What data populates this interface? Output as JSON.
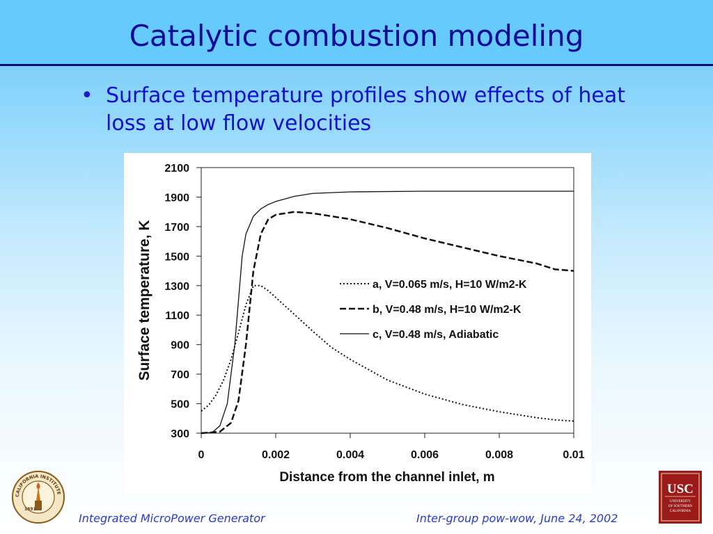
{
  "slide": {
    "title": "Catalytic combustion modeling",
    "bullet": "Surface temperature profiles show effects of heat loss at low flow velocities",
    "footer_left": "Integrated MicroPower Generator",
    "footer_right": "Inter-group pow-wow, June 24, 2002"
  },
  "logos": {
    "left_seal": "CALIFORNIA INSTITUTE OF TECHNOLOGY",
    "left_seal_year": "1891",
    "right_logo": "USC",
    "right_logo_sub": [
      "UNIVERSITY",
      "OF SOUTHERN",
      "CALIFORNIA"
    ]
  },
  "colors": {
    "title": "#0a0a99",
    "bullet": "#1010cc",
    "footer": "#2a3ad0",
    "usc_red": "#9b1a1a"
  },
  "chart_data": {
    "type": "line",
    "xlabel": "Distance from the channel inlet, m",
    "ylabel": "Surface temperature, K",
    "xlim": [
      0,
      0.01
    ],
    "ylim": [
      300,
      2100
    ],
    "xticks": [
      0,
      0.002,
      0.004,
      0.006,
      0.008,
      0.01
    ],
    "xtick_labels": [
      "0",
      "0.002",
      "0.004",
      "0.006",
      "0.008",
      "0.01"
    ],
    "yticks": [
      300,
      500,
      700,
      900,
      1100,
      1300,
      1500,
      1700,
      1900,
      2100
    ],
    "ytick_labels": [
      "300",
      "500",
      "700",
      "900",
      "1100",
      "1300",
      "1500",
      "1700",
      "1900",
      "2100"
    ],
    "legend_position": "center-right",
    "series": [
      {
        "name": "a, V=0.065 m/s, H=10 W/m2-K",
        "dash": "dotted",
        "points": [
          [
            0,
            450
          ],
          [
            0.0002,
            490
          ],
          [
            0.0004,
            560
          ],
          [
            0.0006,
            660
          ],
          [
            0.0008,
            800
          ],
          [
            0.001,
            980
          ],
          [
            0.0012,
            1170
          ],
          [
            0.0014,
            1300
          ],
          [
            0.0016,
            1300
          ],
          [
            0.0018,
            1265
          ],
          [
            0.002,
            1220
          ],
          [
            0.0025,
            1105
          ],
          [
            0.003,
            990
          ],
          [
            0.0035,
            880
          ],
          [
            0.004,
            800
          ],
          [
            0.005,
            660
          ],
          [
            0.006,
            565
          ],
          [
            0.007,
            495
          ],
          [
            0.008,
            445
          ],
          [
            0.009,
            405
          ],
          [
            0.0095,
            390
          ],
          [
            0.01,
            382
          ]
        ]
      },
      {
        "name": "b, V=0.48 m/s, H=10 W/m2-K",
        "dash": "dashed",
        "points": [
          [
            0,
            300
          ],
          [
            0.0005,
            310
          ],
          [
            0.0008,
            370
          ],
          [
            0.001,
            520
          ],
          [
            0.0012,
            900
          ],
          [
            0.0014,
            1400
          ],
          [
            0.0016,
            1650
          ],
          [
            0.0018,
            1750
          ],
          [
            0.002,
            1780
          ],
          [
            0.0025,
            1800
          ],
          [
            0.003,
            1790
          ],
          [
            0.004,
            1750
          ],
          [
            0.005,
            1690
          ],
          [
            0.006,
            1620
          ],
          [
            0.007,
            1560
          ],
          [
            0.008,
            1500
          ],
          [
            0.009,
            1450
          ],
          [
            0.0095,
            1410
          ],
          [
            0.01,
            1400
          ]
        ]
      },
      {
        "name": "c, V=0.48 m/s, Adiabatic",
        "dash": "solid",
        "points": [
          [
            0,
            300
          ],
          [
            0.0003,
            305
          ],
          [
            0.0005,
            350
          ],
          [
            0.0007,
            500
          ],
          [
            0.0009,
            900
          ],
          [
            0.001,
            1200
          ],
          [
            0.0011,
            1500
          ],
          [
            0.0012,
            1650
          ],
          [
            0.0014,
            1770
          ],
          [
            0.0016,
            1820
          ],
          [
            0.0018,
            1850
          ],
          [
            0.002,
            1870
          ],
          [
            0.0025,
            1905
          ],
          [
            0.003,
            1925
          ],
          [
            0.004,
            1935
          ],
          [
            0.006,
            1940
          ],
          [
            0.008,
            1940
          ],
          [
            0.01,
            1940
          ]
        ]
      }
    ]
  }
}
